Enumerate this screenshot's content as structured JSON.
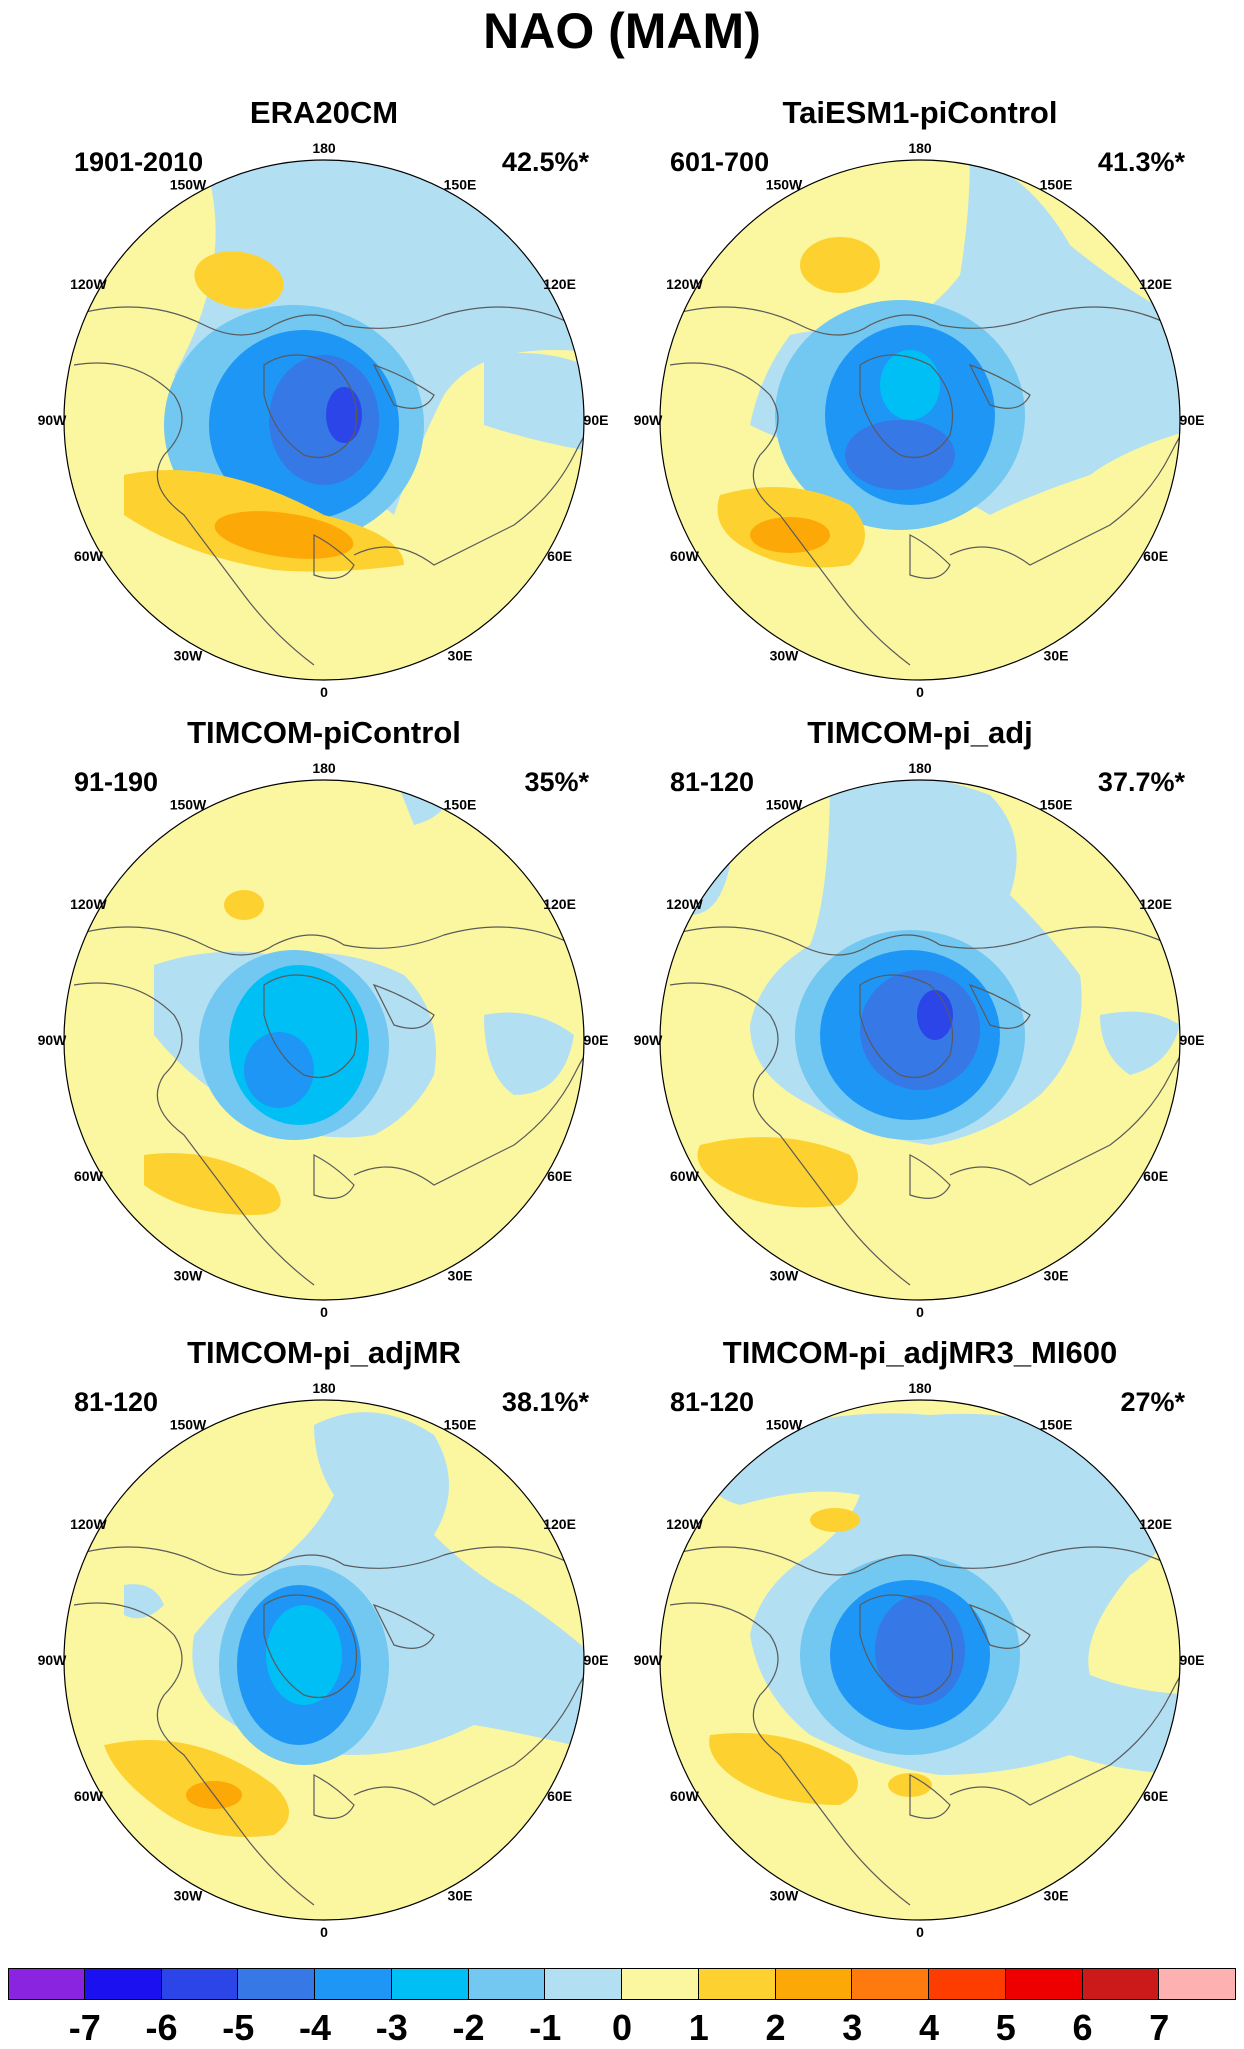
{
  "title": "NAO (MAM)",
  "lon_labels": [
    "180",
    "150E",
    "120E",
    "90E",
    "60E",
    "30E",
    "0",
    "30W",
    "60W",
    "90W",
    "120W",
    "150W"
  ],
  "panels": [
    {
      "name": "ERA20CM",
      "period": "1901-2010",
      "variance": "42.5%*"
    },
    {
      "name": "TaiESM1-piControl",
      "period": "601-700",
      "variance": "41.3%*"
    },
    {
      "name": "TIMCOM-piControl",
      "period": "91-190",
      "variance": "35%*"
    },
    {
      "name": "TIMCOM-pi_adj",
      "period": "81-120",
      "variance": "37.7%*"
    },
    {
      "name": "TIMCOM-pi_adjMR",
      "period": "81-120",
      "variance": "38.1%*"
    },
    {
      "name": "TIMCOM-pi_adjMR3_MI600",
      "period": "81-120",
      "variance": "27%*"
    }
  ],
  "colorbar": {
    "ticks": [
      "-7",
      "-6",
      "-5",
      "-4",
      "-3",
      "-2",
      "-1",
      "0",
      "1",
      "2",
      "3",
      "4",
      "5",
      "6",
      "7"
    ],
    "colors": [
      "#8a24e0",
      "#1a10f0",
      "#2b45e8",
      "#3578e6",
      "#1e96f5",
      "#00bff4",
      "#72c8f0",
      "#b3dff3",
      "#fbf7a0",
      "#fdd230",
      "#fca806",
      "#fe7a0e",
      "#fd3c00",
      "#ee0000",
      "#cc1a1a",
      "#fdb1b1"
    ]
  },
  "colors": {
    "neutral_positive": "#fbf7a0",
    "light_negative": "#b3dff3",
    "negative_1": "#72c8f0",
    "negative_2": "#00bff4",
    "negative_3": "#1e96f5",
    "positive_1": "#fdd230",
    "positive_2": "#fca806",
    "coastline": "#5a5a5a"
  }
}
